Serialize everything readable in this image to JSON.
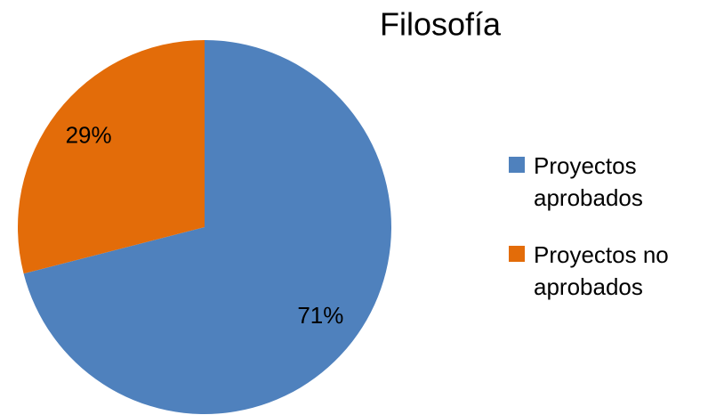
{
  "chart_data": {
    "type": "pie",
    "title": "Filosofía",
    "categories": [
      "Proyectos aprobados",
      "Proyectos no aprobados"
    ],
    "values": [
      71,
      29
    ],
    "value_labels": [
      "71%",
      "29%"
    ],
    "colors": [
      "#4f81bd",
      "#e36c09"
    ],
    "legend": "right"
  }
}
